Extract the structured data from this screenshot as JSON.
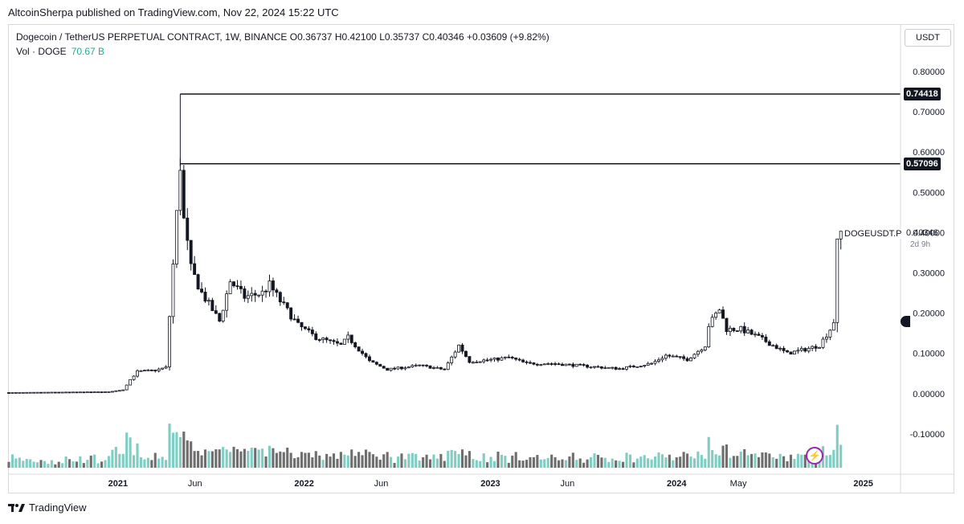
{
  "publish": {
    "text": "AltcoinSherpa published on TradingView.com, Nov 22, 2024 15:22 UTC"
  },
  "legend": {
    "line1": "Dogecoin / TetherUS PERPETUAL CONTRACT, 1W, BINANCE  O0.36737  H0.42100  L0.35737  C0.40346  +0.03609 (+9.82%)",
    "vol_label": "Vol · DOGE",
    "vol_value": "70.67 B"
  },
  "currency": "USDT",
  "symbol": {
    "ticker": "DOGEUSDT.P",
    "price": "0.40346",
    "countdown": "2d 9h"
  },
  "markers": [
    {
      "label": "0.74418",
      "value": 0.74418
    },
    {
      "label": "0.57096",
      "value": 0.57096
    }
  ],
  "brand": {
    "name": "TradingView"
  },
  "colors": {
    "up_volume": "#7fcdc3",
    "down_volume": "#6e6e6e",
    "candle": "#131722",
    "hline": "#131722",
    "vol_label": "#22ab94"
  },
  "icons": {
    "flash": "lightning-icon",
    "logo": "tradingview-logo-icon"
  },
  "chart_data": {
    "type": "candlestick",
    "title": "Dogecoin / TetherUS PERPETUAL CONTRACT, 1W, BINANCE",
    "y_axis_labels": [
      "0.80000",
      "0.70000",
      "0.60000",
      "0.50000",
      "0.40000",
      "0.30000",
      "0.20000",
      "0.10000",
      "0.00000",
      "-0.10000"
    ],
    "y_axis_values": [
      0.8,
      0.7,
      0.6,
      0.5,
      0.4,
      0.3,
      0.2,
      0.1,
      0.0,
      -0.1
    ],
    "ylim": [
      -0.2,
      0.85
    ],
    "x_axis_labels": [
      {
        "label": "2021",
        "date": "2021-01-01"
      },
      {
        "label": "Jun",
        "date": "2021-06-01"
      },
      {
        "label": "2022",
        "date": "2022-01-01"
      },
      {
        "label": "Jun",
        "date": "2022-06-01"
      },
      {
        "label": "2023",
        "date": "2023-01-01"
      },
      {
        "label": "Jun",
        "date": "2023-06-01"
      },
      {
        "label": "2024",
        "date": "2024-01-01"
      },
      {
        "label": "May",
        "date": "2024-05-01"
      },
      {
        "label": "2025",
        "date": "2025-01-01"
      }
    ],
    "xlim": [
      "2020-06-01",
      "2025-03-15"
    ],
    "horizontal_lines": [
      {
        "value": 0.74418,
        "from": "2021-05-03"
      },
      {
        "value": 0.57096,
        "from": "2021-05-03"
      }
    ],
    "price_series": {
      "name": "DOGEUSDT.P",
      "dates": [
        "2020-06-01",
        "2020-12-14",
        "2021-01-11",
        "2021-01-25",
        "2021-02-08",
        "2021-03-15",
        "2021-04-05",
        "2021-04-19",
        "2021-05-03",
        "2021-05-10",
        "2021-05-24",
        "2021-06-14",
        "2021-07-19",
        "2021-08-09",
        "2021-09-06",
        "2021-10-11",
        "2021-10-25",
        "2021-11-15",
        "2021-12-20",
        "2022-01-24",
        "2022-03-14",
        "2022-03-28",
        "2022-05-09",
        "2022-06-13",
        "2022-08-15",
        "2022-10-03",
        "2022-10-31",
        "2022-11-21",
        "2023-01-09",
        "2023-02-06",
        "2023-03-13",
        "2023-05-01",
        "2023-07-10",
        "2023-09-11",
        "2023-11-13",
        "2023-12-11",
        "2024-01-22",
        "2024-02-26",
        "2024-03-04",
        "2024-03-25",
        "2024-04-08",
        "2024-05-06",
        "2024-06-10",
        "2024-07-08",
        "2024-08-05",
        "2024-09-09",
        "2024-10-07",
        "2024-10-28",
        "2024-11-04",
        "2024-11-11",
        "2024-11-18"
      ],
      "values": [
        0.0026,
        0.0046,
        0.0096,
        0.035,
        0.055,
        0.058,
        0.065,
        0.32,
        0.57,
        0.43,
        0.31,
        0.25,
        0.18,
        0.28,
        0.24,
        0.25,
        0.27,
        0.23,
        0.17,
        0.14,
        0.12,
        0.14,
        0.08,
        0.06,
        0.07,
        0.06,
        0.12,
        0.08,
        0.085,
        0.09,
        0.075,
        0.075,
        0.068,
        0.062,
        0.075,
        0.095,
        0.085,
        0.12,
        0.17,
        0.21,
        0.16,
        0.16,
        0.14,
        0.12,
        0.1,
        0.11,
        0.12,
        0.16,
        0.18,
        0.37,
        0.40346
      ]
    },
    "volume_series": {
      "name": "Vol · DOGE",
      "last_value_label": "70.67 B"
    },
    "grid": false,
    "legend_position": "top-left"
  }
}
